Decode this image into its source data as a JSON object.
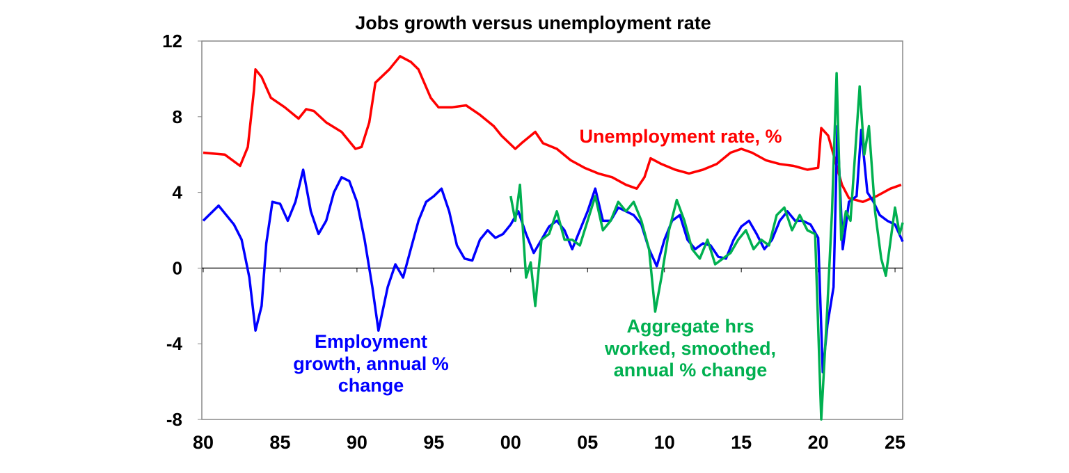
{
  "chart_data": {
    "type": "line",
    "title": "Jobs growth versus unemployment rate",
    "xlabel": "",
    "ylabel": "",
    "xlim": [
      1980,
      2025.5
    ],
    "ylim": [
      -8,
      12
    ],
    "x_ticks": [
      1980,
      1985,
      1990,
      1995,
      2000,
      2005,
      2010,
      2015,
      2020,
      2025
    ],
    "x_tick_labels": [
      "80",
      "85",
      "90",
      "95",
      "00",
      "05",
      "10",
      "15",
      "20",
      "25"
    ],
    "y_ticks": [
      -8,
      -4,
      0,
      4,
      8,
      12
    ],
    "y_tick_labels": [
      "-8",
      "-4",
      "0",
      "4",
      "8",
      "12"
    ],
    "grid": false,
    "zero_line": true,
    "series": [
      {
        "name": "Unemployment rate, %",
        "color": "#ff0000",
        "points": [
          [
            1980,
            6.1
          ],
          [
            1981.4,
            6.0
          ],
          [
            1982.4,
            5.4
          ],
          [
            1982.9,
            6.4
          ],
          [
            1983.3,
            9.4
          ],
          [
            1983.4,
            10.5
          ],
          [
            1983.8,
            10.1
          ],
          [
            1984.4,
            9.0
          ],
          [
            1985.3,
            8.5
          ],
          [
            1986.2,
            7.9
          ],
          [
            1986.7,
            8.4
          ],
          [
            1987.2,
            8.3
          ],
          [
            1988,
            7.7
          ],
          [
            1989,
            7.2
          ],
          [
            1989.9,
            6.3
          ],
          [
            1990.3,
            6.4
          ],
          [
            1990.8,
            7.7
          ],
          [
            1991.2,
            9.8
          ],
          [
            1992.1,
            10.5
          ],
          [
            1992.8,
            11.2
          ],
          [
            1993.5,
            10.9
          ],
          [
            1994,
            10.5
          ],
          [
            1994.8,
            9.0
          ],
          [
            1995.3,
            8.5
          ],
          [
            1996.2,
            8.5
          ],
          [
            1997.1,
            8.6
          ],
          [
            1998,
            8.1
          ],
          [
            1998.9,
            7.5
          ],
          [
            1999.4,
            7.0
          ],
          [
            2000.3,
            6.3
          ],
          [
            2000.7,
            6.6
          ],
          [
            2001.6,
            7.2
          ],
          [
            2002.1,
            6.6
          ],
          [
            2003,
            6.3
          ],
          [
            2003.9,
            5.7
          ],
          [
            2004.8,
            5.3
          ],
          [
            2005.7,
            5.0
          ],
          [
            2006.6,
            4.8
          ],
          [
            2007.5,
            4.4
          ],
          [
            2008.2,
            4.2
          ],
          [
            2008.7,
            4.8
          ],
          [
            2009.1,
            5.8
          ],
          [
            2009.8,
            5.5
          ],
          [
            2010.7,
            5.2
          ],
          [
            2011.6,
            5.0
          ],
          [
            2012.5,
            5.2
          ],
          [
            2013.4,
            5.5
          ],
          [
            2014.3,
            6.1
          ],
          [
            2015,
            6.3
          ],
          [
            2015.7,
            6.1
          ],
          [
            2016.6,
            5.7
          ],
          [
            2017.5,
            5.5
          ],
          [
            2018.4,
            5.4
          ],
          [
            2019.3,
            5.2
          ],
          [
            2020,
            5.3
          ],
          [
            2020.2,
            7.4
          ],
          [
            2020.65,
            7.0
          ],
          [
            2021.1,
            5.7
          ],
          [
            2021.55,
            4.4
          ],
          [
            2022,
            3.7
          ],
          [
            2022.9,
            3.5
          ],
          [
            2023.8,
            3.8
          ],
          [
            2024.7,
            4.2
          ],
          [
            2025.4,
            4.4
          ]
        ]
      },
      {
        "name": "Employment growth, annual % change",
        "color": "#0000ff",
        "points": [
          [
            1980,
            2.5
          ],
          [
            1981,
            3.3
          ],
          [
            1982,
            2.3
          ],
          [
            1982.5,
            1.5
          ],
          [
            1983,
            -0.5
          ],
          [
            1983.4,
            -3.3
          ],
          [
            1983.8,
            -2.0
          ],
          [
            1984.1,
            1.3
          ],
          [
            1984.5,
            3.5
          ],
          [
            1985,
            3.4
          ],
          [
            1985.5,
            2.5
          ],
          [
            1986,
            3.5
          ],
          [
            1986.5,
            5.2
          ],
          [
            1987,
            3.0
          ],
          [
            1987.5,
            1.8
          ],
          [
            1988,
            2.5
          ],
          [
            1988.5,
            4.0
          ],
          [
            1989,
            4.8
          ],
          [
            1989.5,
            4.6
          ],
          [
            1990,
            3.5
          ],
          [
            1990.5,
            1.5
          ],
          [
            1991,
            -1.0
          ],
          [
            1991.4,
            -3.3
          ],
          [
            1992,
            -1.0
          ],
          [
            1992.5,
            0.2
          ],
          [
            1993,
            -0.5
          ],
          [
            1993.5,
            1.0
          ],
          [
            1994,
            2.5
          ],
          [
            1994.5,
            3.5
          ],
          [
            1995,
            3.8
          ],
          [
            1995.5,
            4.2
          ],
          [
            1996,
            3.0
          ],
          [
            1996.5,
            1.2
          ],
          [
            1997,
            0.5
          ],
          [
            1997.5,
            0.4
          ],
          [
            1998,
            1.5
          ],
          [
            1998.5,
            2.0
          ],
          [
            1999,
            1.6
          ],
          [
            1999.5,
            1.8
          ],
          [
            2000,
            2.3
          ],
          [
            2000.5,
            3.0
          ],
          [
            2001,
            1.8
          ],
          [
            2001.5,
            0.8
          ],
          [
            2002,
            1.5
          ],
          [
            2002.5,
            2.2
          ],
          [
            2003,
            2.5
          ],
          [
            2003.5,
            2.0
          ],
          [
            2004,
            1.0
          ],
          [
            2004.5,
            2.0
          ],
          [
            2005,
            3.0
          ],
          [
            2005.5,
            4.2
          ],
          [
            2006,
            2.5
          ],
          [
            2006.5,
            2.5
          ],
          [
            2007,
            3.2
          ],
          [
            2007.5,
            3.0
          ],
          [
            2008,
            2.8
          ],
          [
            2008.5,
            2.3
          ],
          [
            2009,
            1.0
          ],
          [
            2009.5,
            0.1
          ],
          [
            2010,
            1.5
          ],
          [
            2010.5,
            2.5
          ],
          [
            2011,
            2.8
          ],
          [
            2011.5,
            1.5
          ],
          [
            2012,
            1.0
          ],
          [
            2012.5,
            1.3
          ],
          [
            2013,
            1.2
          ],
          [
            2013.5,
            0.6
          ],
          [
            2014,
            0.5
          ],
          [
            2014.5,
            1.5
          ],
          [
            2015,
            2.2
          ],
          [
            2015.5,
            2.5
          ],
          [
            2016,
            1.8
          ],
          [
            2016.5,
            1.0
          ],
          [
            2017,
            1.5
          ],
          [
            2017.5,
            2.5
          ],
          [
            2018,
            3.0
          ],
          [
            2018.5,
            2.5
          ],
          [
            2019,
            2.5
          ],
          [
            2019.5,
            2.3
          ],
          [
            2020,
            1.6
          ],
          [
            2020.3,
            -5.5
          ],
          [
            2020.6,
            -3.0
          ],
          [
            2021,
            -1.0
          ],
          [
            2021.25,
            7.5
          ],
          [
            2021.6,
            1.0
          ],
          [
            2022,
            3.5
          ],
          [
            2022.5,
            3.8
          ],
          [
            2022.8,
            7.3
          ],
          [
            2023.2,
            4.0
          ],
          [
            2023.6,
            3.5
          ],
          [
            2024,
            2.8
          ],
          [
            2024.5,
            2.5
          ],
          [
            2025,
            2.3
          ],
          [
            2025.5,
            1.4
          ]
        ]
      },
      {
        "name": "Aggregate hrs worked, smoothed, annual % change",
        "color": "#00b050",
        "points": [
          [
            2000,
            3.8
          ],
          [
            2000.3,
            2.5
          ],
          [
            2000.6,
            4.4
          ],
          [
            2001,
            -0.5
          ],
          [
            2001.3,
            0.3
          ],
          [
            2001.6,
            -2.0
          ],
          [
            2002,
            1.5
          ],
          [
            2002.5,
            1.8
          ],
          [
            2003,
            3.0
          ],
          [
            2003.5,
            1.5
          ],
          [
            2004,
            1.5
          ],
          [
            2004.5,
            1.2
          ],
          [
            2005,
            2.5
          ],
          [
            2005.5,
            3.8
          ],
          [
            2006,
            2.0
          ],
          [
            2006.5,
            2.5
          ],
          [
            2007,
            3.5
          ],
          [
            2007.5,
            3.0
          ],
          [
            2008,
            3.5
          ],
          [
            2008.5,
            2.5
          ],
          [
            2009,
            1.0
          ],
          [
            2009.4,
            -2.3
          ],
          [
            2009.8,
            -0.5
          ],
          [
            2010.3,
            2.0
          ],
          [
            2010.8,
            3.6
          ],
          [
            2011.3,
            2.5
          ],
          [
            2011.8,
            1.0
          ],
          [
            2012.3,
            0.5
          ],
          [
            2012.8,
            1.5
          ],
          [
            2013.3,
            0.2
          ],
          [
            2013.8,
            0.5
          ],
          [
            2014.3,
            0.8
          ],
          [
            2014.8,
            1.5
          ],
          [
            2015.3,
            2.0
          ],
          [
            2015.8,
            1.0
          ],
          [
            2016.3,
            1.5
          ],
          [
            2016.8,
            1.2
          ],
          [
            2017.3,
            2.8
          ],
          [
            2017.8,
            3.2
          ],
          [
            2018.3,
            2.0
          ],
          [
            2018.8,
            2.8
          ],
          [
            2019.3,
            2.0
          ],
          [
            2019.8,
            1.8
          ],
          [
            2020.2,
            -8.0
          ],
          [
            2020.6,
            -2.0
          ],
          [
            2020.9,
            3.0
          ],
          [
            2021.2,
            10.3
          ],
          [
            2021.5,
            1.5
          ],
          [
            2021.8,
            3.0
          ],
          [
            2022.1,
            2.5
          ],
          [
            2022.4,
            6.0
          ],
          [
            2022.7,
            9.6
          ],
          [
            2023.0,
            6.0
          ],
          [
            2023.3,
            7.5
          ],
          [
            2023.7,
            3.0
          ],
          [
            2024.1,
            0.5
          ],
          [
            2024.4,
            -0.4
          ],
          [
            2024.8,
            2.0
          ],
          [
            2025.0,
            3.2
          ],
          [
            2025.3,
            1.8
          ],
          [
            2025.5,
            2.4
          ]
        ]
      }
    ],
    "annotations": {
      "unemployment": [
        "Unemployment rate, %"
      ],
      "employment": [
        "Employment",
        "growth, annual %",
        "change"
      ],
      "hours": [
        "Aggregate hrs",
        "worked, smoothed,",
        "annual % change"
      ]
    }
  }
}
